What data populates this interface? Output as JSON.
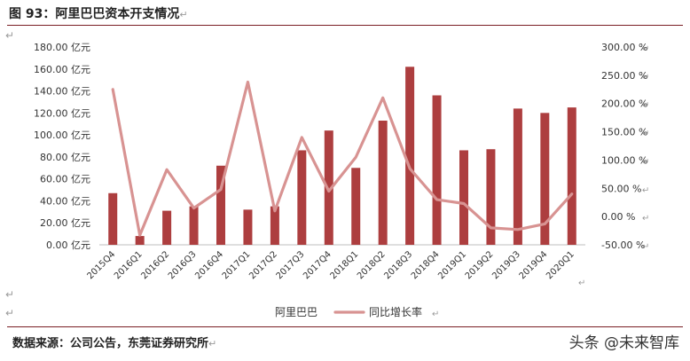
{
  "figure": {
    "title": "图 93：阿里巴巴资本开支情况",
    "source": "数据来源：公司公告，东莞证券研究所",
    "watermark": "头条 @未来智库",
    "para_mark": "↵"
  },
  "colors": {
    "bar": "#ad3e3f",
    "line": "#d89392",
    "rule": "#7a1f24"
  },
  "chart_data": {
    "type": "bar",
    "categories": [
      "2015Q4",
      "2016Q1",
      "2016Q2",
      "2016Q3",
      "2016Q4",
      "2017Q1",
      "2017Q2",
      "2017Q3",
      "2017Q4",
      "2018Q1",
      "2018Q2",
      "2018Q3",
      "2018Q4",
      "2019Q1",
      "2019Q2",
      "2019Q3",
      "2019Q4",
      "2020Q1"
    ],
    "series": [
      {
        "name": "阿里巴巴",
        "type": "bar",
        "axis": "left",
        "values": [
          47,
          8,
          31,
          35,
          72,
          32,
          35,
          86,
          104,
          70,
          113,
          162,
          136,
          86,
          87,
          124,
          120,
          125
        ]
      },
      {
        "name": "同比增长率",
        "type": "line",
        "axis": "right",
        "values": [
          225,
          -33,
          83,
          15,
          48,
          238,
          10,
          140,
          45,
          105,
          210,
          85,
          30,
          23,
          -20,
          -23,
          -13,
          40
        ]
      }
    ],
    "left_axis": {
      "ylim": [
        0,
        180
      ],
      "ticks": [
        0,
        20,
        40,
        60,
        80,
        100,
        120,
        140,
        160,
        180
      ],
      "tick_labels": [
        "0.00 亿元",
        "20.00 亿元",
        "40.00 亿元",
        "60.00 亿元",
        "80.00 亿元",
        "100.00 亿元",
        "120.00 亿元",
        "140.00 亿元",
        "160.00 亿元",
        "180.00 亿元"
      ]
    },
    "right_axis": {
      "ylim": [
        -50,
        300
      ],
      "ticks": [
        -50,
        0,
        50,
        100,
        150,
        200,
        250,
        300
      ],
      "tick_labels": [
        "-50.00 %",
        "0.00 %",
        "50.00 %",
        "100.00 %",
        "150.00 %",
        "200.00 %",
        "250.00 %",
        "300.00 %"
      ]
    },
    "grid": false,
    "legend_position": "bottom"
  }
}
